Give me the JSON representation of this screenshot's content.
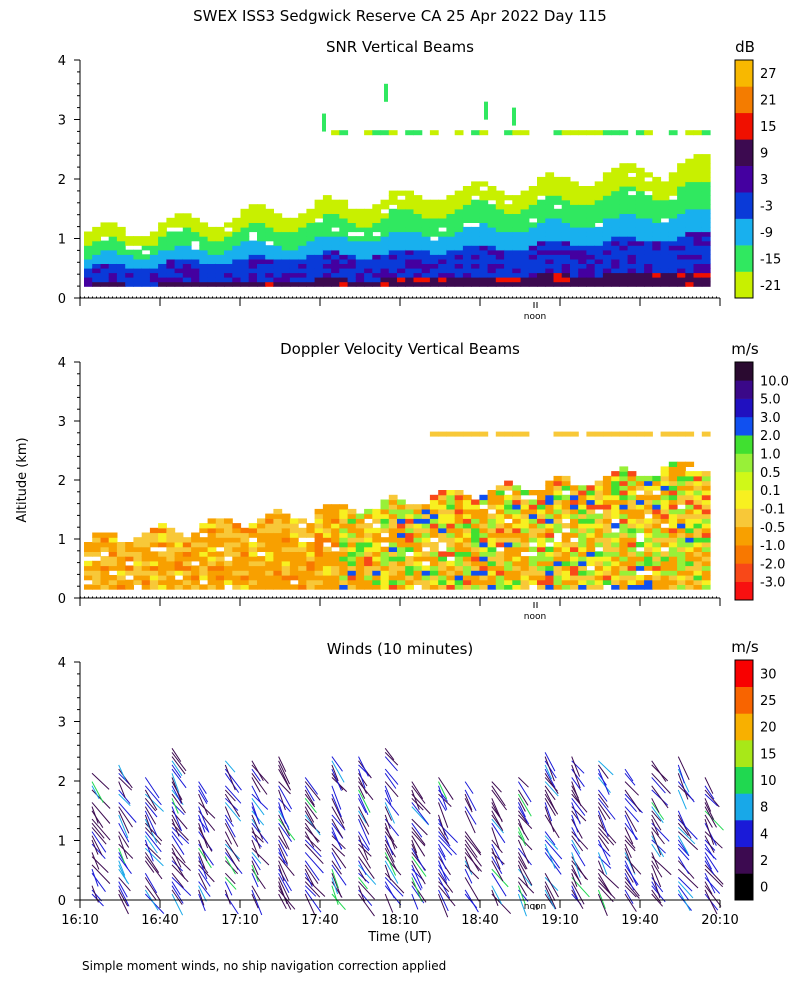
{
  "page": {
    "title": "SWEX ISS3 Sedgwick Reserve CA  25 Apr 2022 Day 115",
    "ylabel": "Altitude (km)",
    "xlabel": "Time (UT)",
    "noon_label": "noon",
    "footnote": "Simple moment winds, no ship navigation correction applied"
  },
  "colors": {
    "snr": [
      "#c8f000",
      "#30e860",
      "#18b0ee",
      "#0a3ad8",
      "#4400a0",
      "#3c0a50",
      "#f01000",
      "#f47c00",
      "#f8b800"
    ],
    "doppler": [
      "#f81010",
      "#f84818",
      "#f87800",
      "#f8a000",
      "#f8c838",
      "#f8f020",
      "#d0f818",
      "#98f038",
      "#40e030",
      "#1050f0",
      "#2010c0",
      "#3a0888",
      "#2a0a30"
    ],
    "wind": [
      "#000000",
      "#3c0a50",
      "#1a1ad8",
      "#18a8e8",
      "#20d850",
      "#a8e818",
      "#f8b000",
      "#f86400",
      "#f80000"
    ]
  },
  "chart_data": [
    {
      "type": "heatmap",
      "title": "SNR Vertical Beams",
      "units": "dB",
      "ylim": [
        0,
        4
      ],
      "yticks": [
        0,
        1,
        2,
        3,
        4
      ],
      "xticks": [],
      "colorbar": {
        "labels": [
          "-21",
          "-15",
          "-9",
          "-3",
          "3",
          "9",
          "15",
          "21",
          "27"
        ]
      }
    },
    {
      "type": "heatmap",
      "title": "Doppler Velocity Vertical Beams",
      "units": "m/s",
      "ylim": [
        0,
        4
      ],
      "yticks": [
        0,
        1,
        2,
        3,
        4
      ],
      "xticks": [],
      "colorbar": {
        "labels": [
          "-3.0",
          "-2.0",
          "-1.0",
          "-0.5",
          "-0.1",
          "0.1",
          "0.5",
          "1.0",
          "2.0",
          "3.0",
          "5.0",
          "10.0"
        ]
      }
    },
    {
      "type": "scatter",
      "title": "Winds (10 minutes)",
      "units": "m/s",
      "ylim": [
        0,
        4
      ],
      "yticks": [
        0,
        1,
        2,
        3,
        4
      ],
      "xticks": [
        "16:10",
        "16:40",
        "17:10",
        "17:40",
        "18:10",
        "18:40",
        "19:10",
        "19:40",
        "20:10"
      ],
      "colorbar": {
        "labels": [
          "0",
          "2",
          "4",
          "8",
          "10",
          "15",
          "20",
          "25",
          "30"
        ]
      }
    }
  ]
}
